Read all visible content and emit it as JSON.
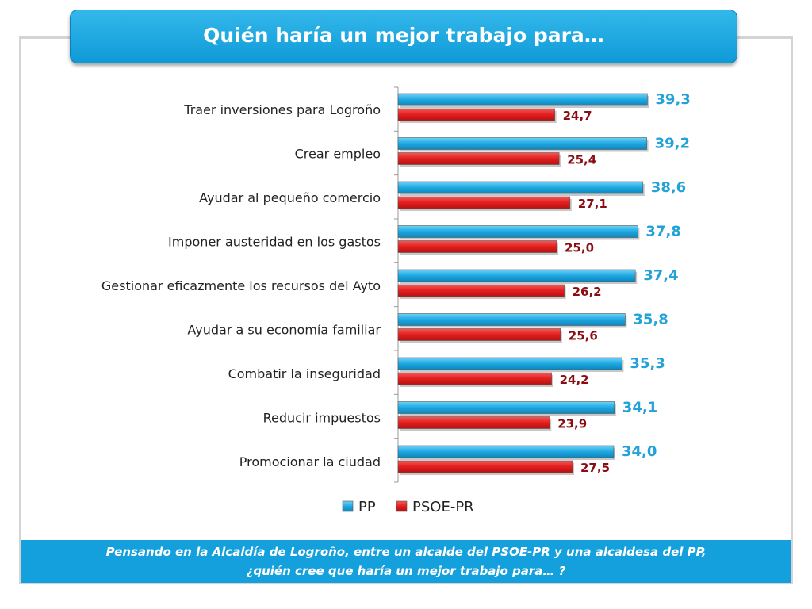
{
  "title": "Quién haría un mejor trabajo para…",
  "footer": {
    "line1": "Pensando en la Alcaldía de Logroño, entre un alcalde del PSOE-PR y una alcaldesa del PP,",
    "line2": "¿quién cree que haría un mejor trabajo para… ?"
  },
  "chart_data": {
    "type": "bar",
    "orientation": "horizontal",
    "categories": [
      "Traer inversiones para Logroño",
      "Crear empleo",
      "Ayudar al pequeño comercio",
      "Imponer austeridad en los gastos",
      "Gestionar eficazmente los recursos del Ayto",
      "Ayudar a su economía familiar",
      "Combatir la inseguridad",
      "Reducir impuestos",
      "Promocionar la ciudad"
    ],
    "series": [
      {
        "name": "PP",
        "color": "#1ea8e2",
        "values": [
          39.3,
          39.2,
          38.6,
          37.8,
          37.4,
          35.8,
          35.3,
          34.1,
          34.0
        ],
        "labels": [
          "39,3",
          "39,2",
          "38,6",
          "37,8",
          "37,4",
          "35,8",
          "35,3",
          "34,1",
          "34,0"
        ]
      },
      {
        "name": "PSOE-PR",
        "color": "#e41e1e",
        "values": [
          24.7,
          25.4,
          27.1,
          25.0,
          26.2,
          25.6,
          24.2,
          23.9,
          27.5
        ],
        "labels": [
          "24,7",
          "25,4",
          "27,1",
          "25,0",
          "26,2",
          "25,6",
          "24,2",
          "23,9",
          "27,5"
        ]
      }
    ],
    "legend_position": "bottom",
    "grid": false
  }
}
